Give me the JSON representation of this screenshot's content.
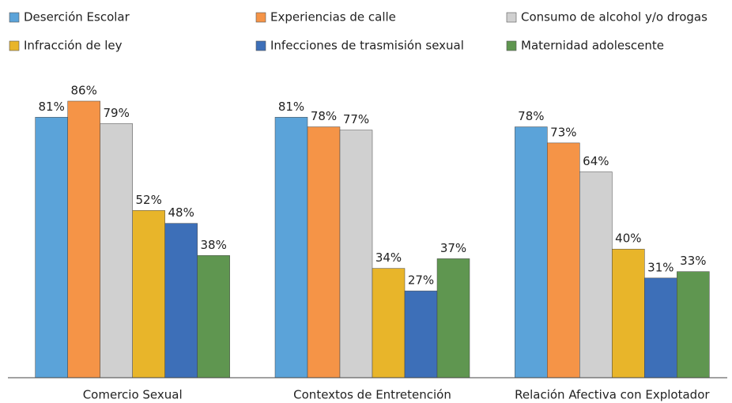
{
  "chart_data": {
    "type": "bar",
    "categories": [
      "Comercio Sexual",
      "Contextos de Entretención",
      "Relación Afectiva con Explotador"
    ],
    "series": [
      {
        "name": "Deserción Escolar",
        "color": "#5ba3d9",
        "values": [
          81,
          81,
          78
        ],
        "value_labels": [
          "81%",
          "81%",
          "78%"
        ]
      },
      {
        "name": "Experiencias de calle",
        "color": "#f59447",
        "values": [
          86,
          78,
          73
        ],
        "value_labels": [
          "86%",
          "78%",
          "73%"
        ]
      },
      {
        "name": "Consumo de alcohol y/o drogas",
        "color": "#d0d0d0",
        "values": [
          79,
          77,
          64
        ],
        "value_labels": [
          "79%",
          "77%",
          "64%"
        ]
      },
      {
        "name": "Infracción de ley",
        "color": "#e8b52a",
        "values": [
          52,
          34,
          40
        ],
        "value_labels": [
          "52%",
          "34%",
          "40%"
        ]
      },
      {
        "name": "Infecciones de trasmisión sexual",
        "color": "#3d6fb8",
        "values": [
          48,
          27,
          31
        ],
        "value_labels": [
          "48%",
          "27%",
          "31%"
        ]
      },
      {
        "name": "Maternidad adolescente",
        "color": "#5f9650",
        "values": [
          38,
          37,
          33
        ],
        "value_labels": [
          "38%",
          "37%",
          "33%"
        ]
      }
    ],
    "ylim": [
      0,
      100
    ]
  }
}
